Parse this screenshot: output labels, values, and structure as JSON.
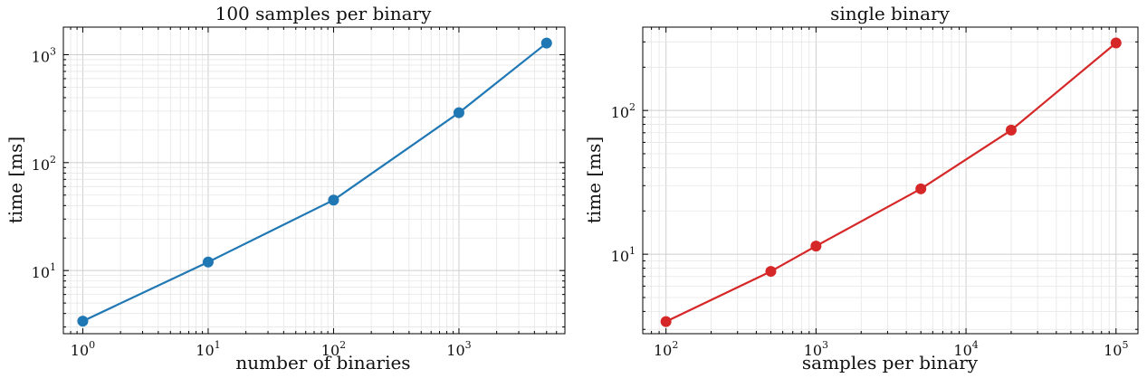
{
  "chart_data": [
    {
      "type": "line",
      "title": "100 samples per binary",
      "xlabel": "number of binaries",
      "ylabel": "time [ms]",
      "xscale": "log",
      "yscale": "log",
      "xlim": [
        0.7,
        7000
      ],
      "ylim": [
        2.6,
        1800
      ],
      "xticks": [
        1,
        10,
        100,
        1000
      ],
      "yticks": [
        10,
        100,
        1000
      ],
      "grid": true,
      "series": [
        {
          "color": "#1f77b4",
          "marker": "circle",
          "x": [
            1,
            10,
            100,
            1000,
            5000
          ],
          "y": [
            3.4,
            12,
            45,
            290,
            1280
          ]
        }
      ]
    },
    {
      "type": "line",
      "title": "single binary",
      "xlabel": "samples per binary",
      "ylabel": "time [ms]",
      "xscale": "log",
      "yscale": "log",
      "xlim": [
        70,
        140000
      ],
      "ylim": [
        2.8,
        380
      ],
      "xticks": [
        100,
        1000,
        10000,
        100000
      ],
      "yticks": [
        10,
        100
      ],
      "grid": true,
      "series": [
        {
          "color": "#d62728",
          "marker": "circle",
          "x": [
            100,
            500,
            1000,
            5000,
            20000,
            100000
          ],
          "y": [
            3.4,
            7.6,
            11.4,
            28.5,
            73,
            295
          ]
        }
      ]
    }
  ]
}
